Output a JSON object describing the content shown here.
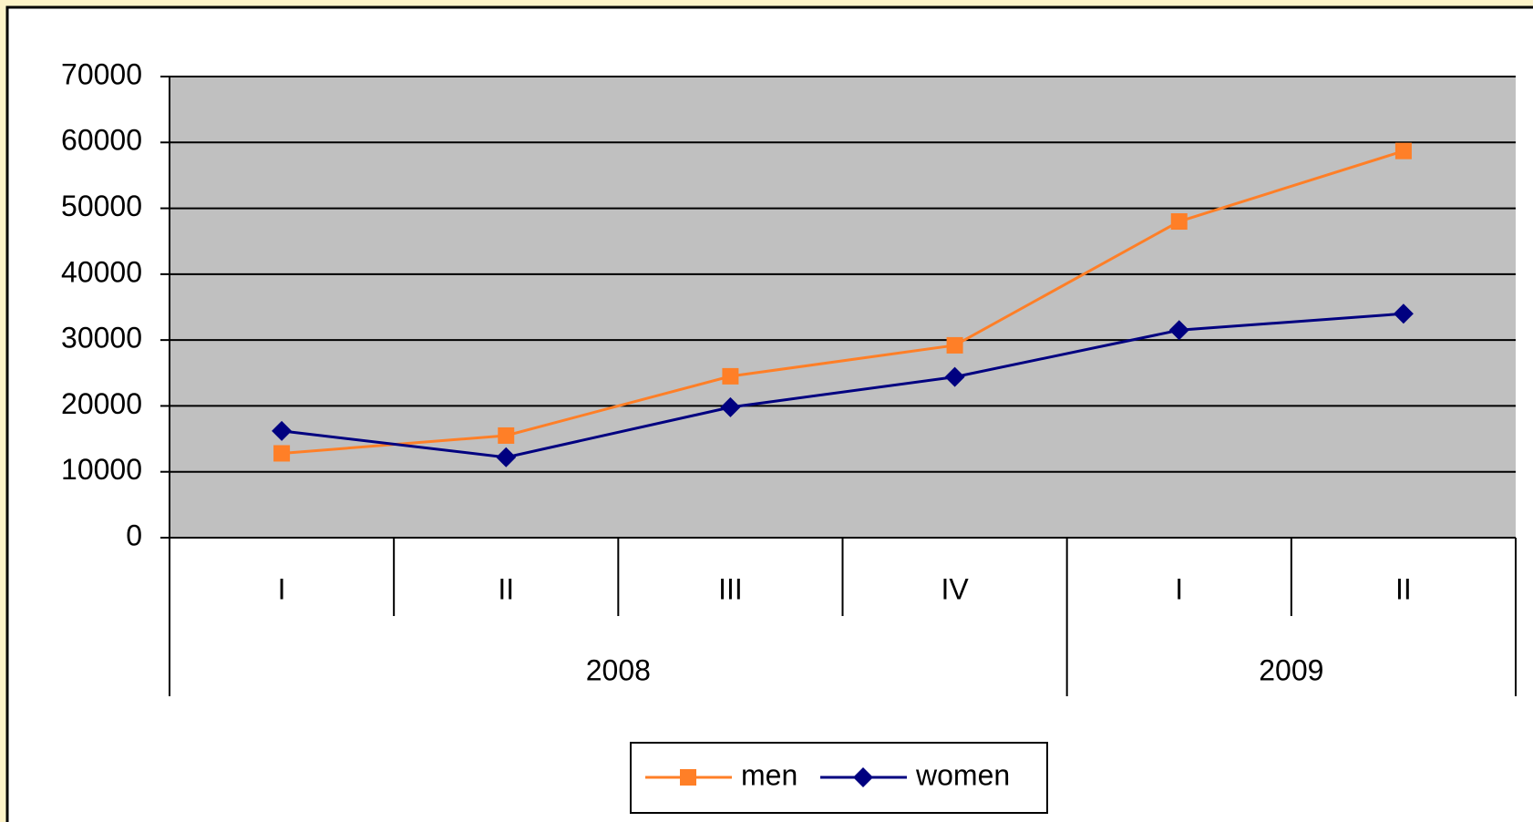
{
  "chart_data": {
    "type": "line",
    "categories": [
      "I",
      "II",
      "III",
      "IV",
      "I",
      "II"
    ],
    "groups": [
      {
        "name": "2008",
        "span": 4
      },
      {
        "name": "2009",
        "span": 2
      }
    ],
    "series": [
      {
        "name": "men",
        "color": "#ff7f27",
        "marker": "square",
        "values": [
          12800,
          15500,
          24500,
          29200,
          48000,
          58700
        ]
      },
      {
        "name": "women",
        "color": "#000080",
        "marker": "diamond",
        "values": [
          16200,
          12200,
          19800,
          24400,
          31500,
          34000
        ]
      }
    ],
    "ylim": [
      0,
      70000
    ],
    "yticks": [
      0,
      10000,
      20000,
      30000,
      40000,
      50000,
      60000,
      70000
    ],
    "grid": true,
    "legend": "bottom"
  }
}
